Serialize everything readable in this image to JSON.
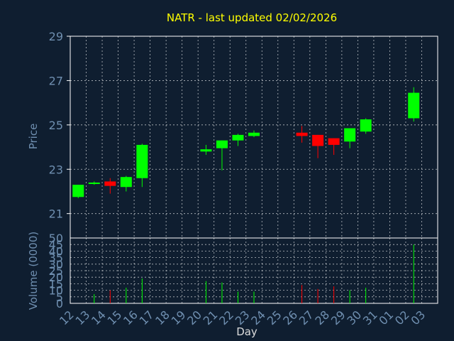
{
  "colors": {
    "background": "#0f1e30",
    "grid": "#ffffff",
    "axis_text": "#6f8fb0",
    "title": "#ffff00",
    "up": "#00ff00",
    "down": "#ff0000"
  },
  "chart_data": [
    {
      "type": "candlestick",
      "title": "NATR - last updated 02/02/2026",
      "ylabel": "Price",
      "ylim": [
        19.9,
        29
      ],
      "yticks": [
        "21",
        "23",
        "25",
        "27",
        "29"
      ],
      "grid": true,
      "candles": [
        {
          "day": "12",
          "open": 21.75,
          "high": 22.3,
          "low": 21.7,
          "close": 22.3
        },
        {
          "day": "13",
          "open": 22.35,
          "high": 22.45,
          "low": 22.3,
          "close": 22.4
        },
        {
          "day": "14",
          "open": 22.45,
          "high": 22.6,
          "low": 21.9,
          "close": 22.25
        },
        {
          "day": "15",
          "open": 22.2,
          "high": 22.7,
          "low": 22.0,
          "close": 22.65
        },
        {
          "day": "16",
          "open": 22.6,
          "high": 24.15,
          "low": 22.2,
          "close": 24.1
        },
        {
          "day": "20",
          "open": 23.8,
          "high": 24.1,
          "low": 23.65,
          "close": 23.9
        },
        {
          "day": "21",
          "open": 23.95,
          "high": 24.3,
          "low": 22.95,
          "close": 24.3
        },
        {
          "day": "22",
          "open": 24.3,
          "high": 24.6,
          "low": 24.05,
          "close": 24.55
        },
        {
          "day": "23",
          "open": 24.5,
          "high": 24.75,
          "low": 24.45,
          "close": 24.65
        },
        {
          "day": "26",
          "open": 24.65,
          "high": 24.95,
          "low": 24.2,
          "close": 24.5
        },
        {
          "day": "27",
          "open": 24.55,
          "high": 24.55,
          "low": 23.5,
          "close": 24.05
        },
        {
          "day": "28",
          "open": 24.4,
          "high": 24.4,
          "low": 23.65,
          "close": 24.1
        },
        {
          "day": "29",
          "open": 24.25,
          "high": 24.85,
          "low": 23.95,
          "close": 24.85
        },
        {
          "day": "30",
          "open": 24.7,
          "high": 25.3,
          "low": 24.6,
          "close": 25.25
        },
        {
          "day": "02",
          "open": 25.3,
          "high": 26.7,
          "low": 25.15,
          "close": 26.45
        }
      ]
    },
    {
      "type": "bar",
      "ylabel": "Volume (0000)",
      "xlabel": "Day",
      "ylim": [
        0,
        50
      ],
      "yticks": [
        "0",
        "5",
        "10",
        "15",
        "20",
        "25",
        "30",
        "35",
        "40",
        "45",
        "50"
      ],
      "grid": true,
      "categories": [
        "12",
        "13",
        "14",
        "15",
        "16",
        "17",
        "18",
        "19",
        "20",
        "21",
        "22",
        "23",
        "24",
        "25",
        "26",
        "27",
        "28",
        "29",
        "30",
        "31",
        "01",
        "02",
        "03"
      ],
      "values": [
        {
          "day": "12",
          "volume": 0
        },
        {
          "day": "13",
          "volume": 7
        },
        {
          "day": "14",
          "volume": 10
        },
        {
          "day": "15",
          "volume": 12
        },
        {
          "day": "16",
          "volume": 19
        },
        {
          "day": "20",
          "volume": 17
        },
        {
          "day": "21",
          "volume": 16
        },
        {
          "day": "22",
          "volume": 9
        },
        {
          "day": "23",
          "volume": 9
        },
        {
          "day": "26",
          "volume": 14
        },
        {
          "day": "27",
          "volume": 11
        },
        {
          "day": "28",
          "volume": 13
        },
        {
          "day": "29",
          "volume": 10
        },
        {
          "day": "30",
          "volume": 12
        },
        {
          "day": "02",
          "volume": 45
        }
      ]
    }
  ]
}
